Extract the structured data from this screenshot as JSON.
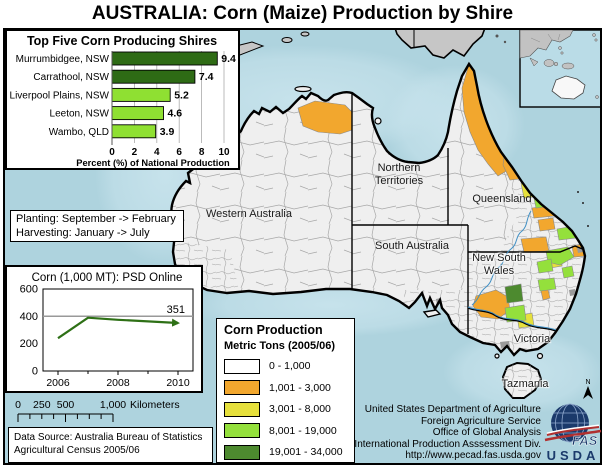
{
  "title": "AUSTRALIA: Corn (Maize) Production by Shire",
  "colors": {
    "ocean": "#aed3de",
    "land": "#efefef",
    "foreign_land": "#c6c6c6",
    "bar_dark_green": "#2e6b15",
    "bar_light_green": "#8fe032",
    "trend_line_green": "#2e7016",
    "river_blue": "#3f8fc4"
  },
  "season_box": {
    "line1": "Planting: September -> February",
    "line2": "Harvesting: January -> July"
  },
  "scale_bar": {
    "ticks": [
      "0",
      "250",
      "500"
    ],
    "end_tick": "1,000",
    "unit": "Kilometers"
  },
  "data_source": {
    "line1": "Data Source: Australia Bureau of Statistics",
    "line2": "Agricultural Census 2005/06"
  },
  "legend": {
    "title": "Corn Production",
    "subtitle": "Metric Tons (2005/06)",
    "classes": [
      {
        "range": "0 - 1,000",
        "color": "#ffffff"
      },
      {
        "range": "1,001 - 3,000",
        "color": "#f2a72e"
      },
      {
        "range": "3,001 - 8,000",
        "color": "#e6e03c"
      },
      {
        "range": "8,001 - 19,000",
        "color": "#94e03c"
      },
      {
        "range": "19,001 - 34,000",
        "color": "#4d8a2f"
      }
    ]
  },
  "credits": {
    "line1": "United States Department of Agriculture",
    "line2": "Foreign Agriculture Service",
    "line3": "Office of Global Analysis",
    "line4": "International Production Asssessment Div.",
    "line5": "http://www.pecad.fas.usda.gov"
  },
  "logo": {
    "fas": "FAS",
    "usda": "USDA"
  },
  "north_arrow": "N",
  "map_labels": {
    "wa": "Western Australia",
    "nt1": "Northern",
    "nt2": "Territories",
    "qld": "Queensland",
    "sa": "South Australia",
    "nsw1": "New South",
    "nsw2": "Wales",
    "vic": "Victoria",
    "tas": "Tazmania"
  },
  "chart_data": [
    {
      "type": "bar",
      "title": "Top Five Corn Producing Shires",
      "categories": [
        "Murrumbidgee, NSW",
        "Carrathool, NSW",
        "Liverpool Plains, NSW",
        "Leeton, NSW",
        "Wambo, QLD"
      ],
      "values": [
        9.4,
        7.4,
        5.2,
        4.6,
        3.9
      ],
      "bar_colors": [
        "dark_green",
        "dark_green",
        "light_green",
        "light_green",
        "light_green"
      ],
      "xlabel": "Percent (%) of National Production",
      "xlim": [
        0,
        10
      ],
      "x_ticks": [
        0,
        2,
        4,
        6,
        8,
        10
      ]
    },
    {
      "type": "line",
      "title": "Corn (1,000 MT): PSD Online",
      "x": [
        2006,
        2007,
        2008,
        2009,
        2010
      ],
      "values": [
        240,
        390,
        375,
        363,
        351
      ],
      "ylim": [
        0,
        600
      ],
      "y_ticks": [
        0,
        200,
        400,
        600
      ],
      "x_ticks": [
        2006,
        2008,
        2010
      ],
      "end_label": "351"
    }
  ]
}
